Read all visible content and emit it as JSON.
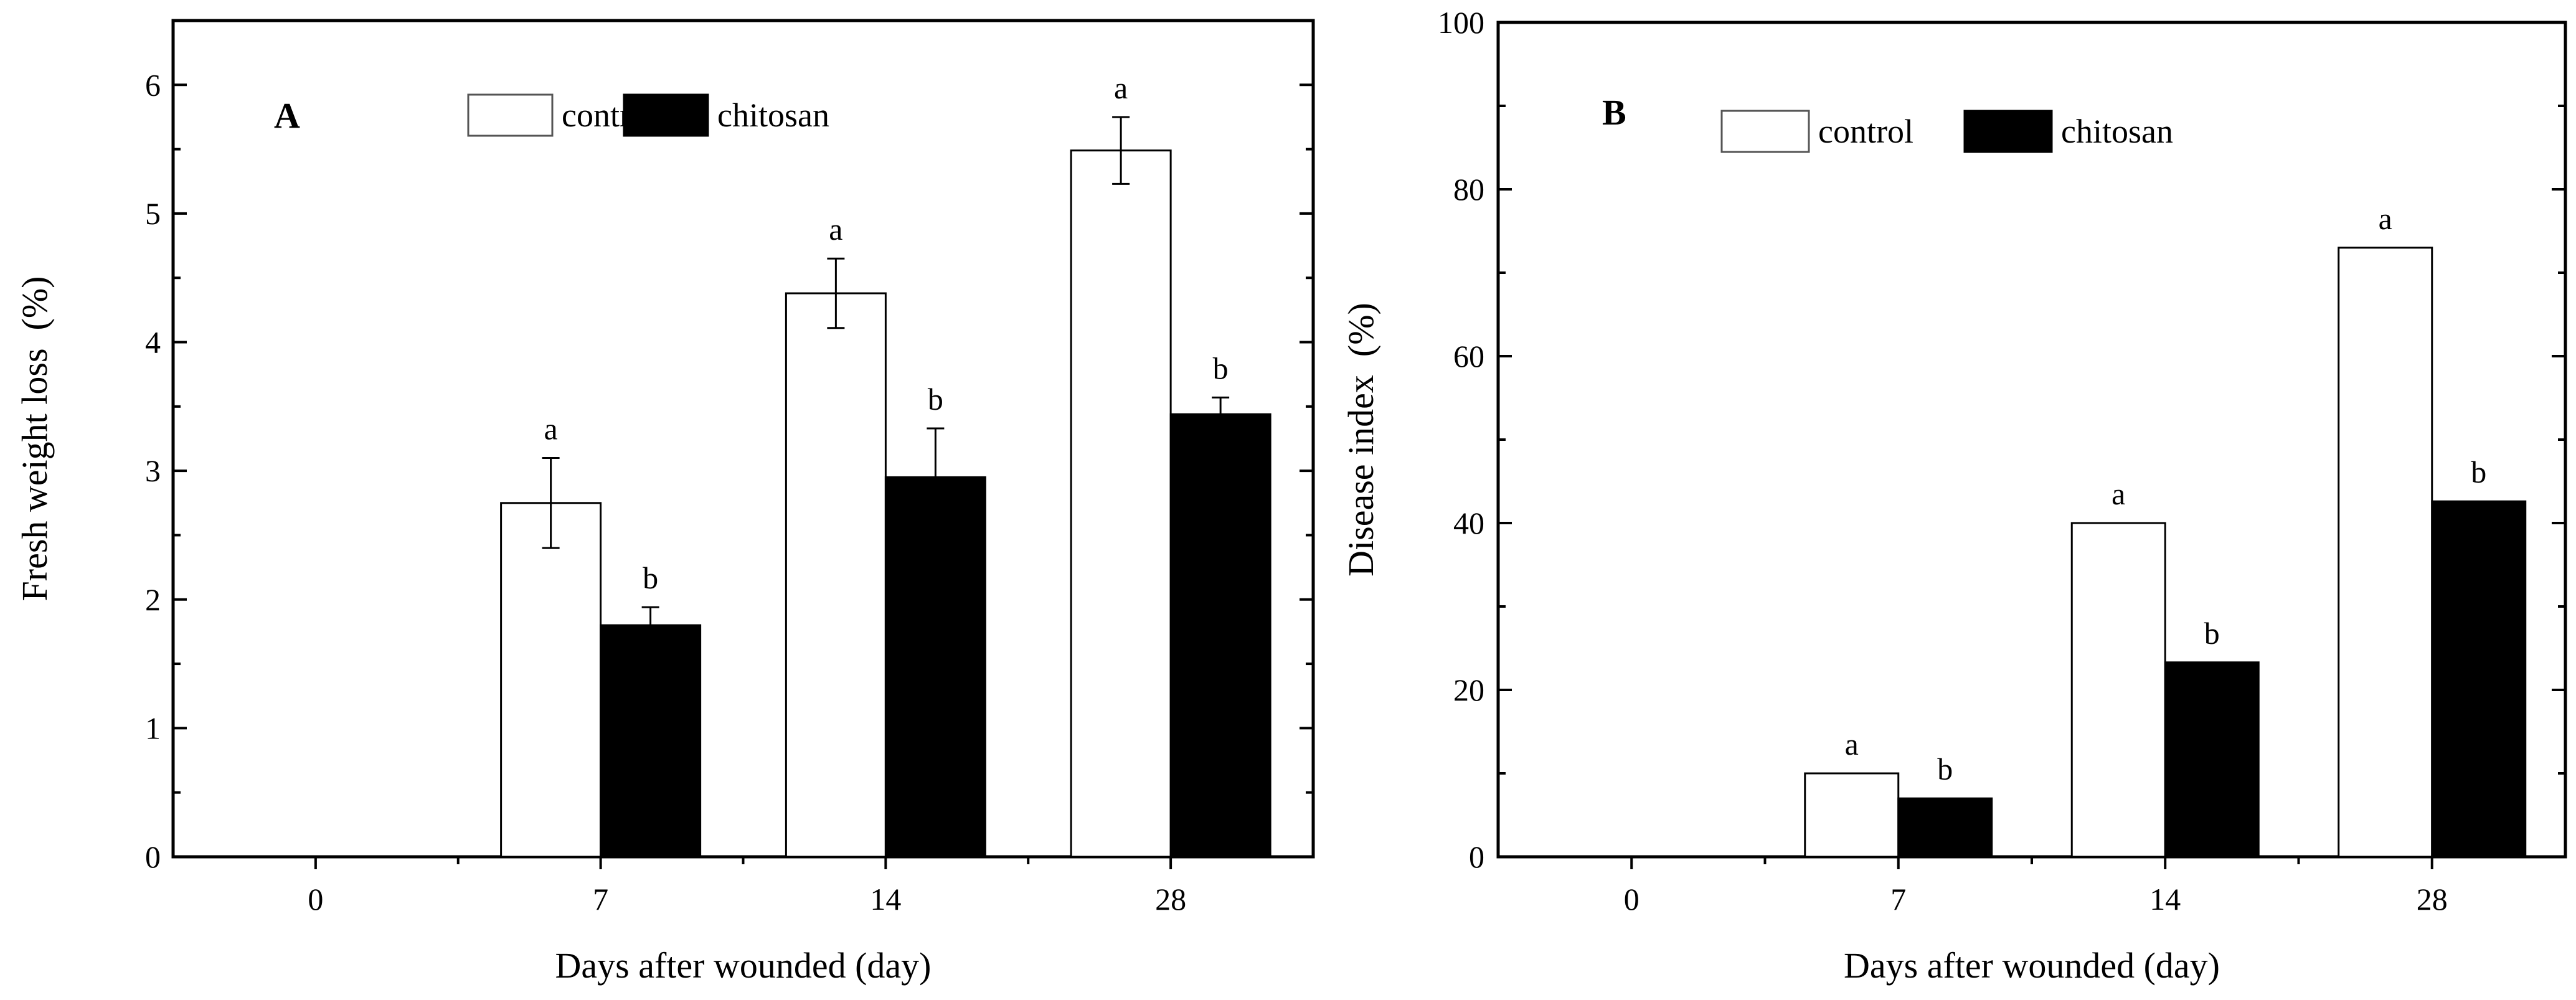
{
  "chart_data": [
    {
      "type": "bar",
      "panel_label": "A",
      "categories": [
        "0",
        "7",
        "14",
        "28"
      ],
      "series": [
        {
          "name": "control",
          "values": [
            0,
            2.75,
            4.38,
            5.49
          ],
          "errors": [
            0,
            0.35,
            0.27,
            0.26
          ],
          "letters": [
            "",
            "a",
            "a",
            "a"
          ],
          "fill": "#ffffff"
        },
        {
          "name": "chitosan",
          "values": [
            0,
            1.8,
            2.95,
            3.44
          ],
          "errors": [
            0,
            0.14,
            0.38,
            0.13
          ],
          "letters": [
            "",
            "b",
            "b",
            "b"
          ],
          "fill": "#000000"
        }
      ],
      "xlabel": "Days after wounded (day)",
      "ylabel": "Fresh weight loss  (%)",
      "ylim": [
        0,
        6.5
      ],
      "yticks": [
        0,
        1,
        2,
        3,
        4,
        5,
        6
      ],
      "legend": [
        "control",
        "chitosan"
      ],
      "legend_position": "top-center"
    },
    {
      "type": "bar",
      "panel_label": "B",
      "categories": [
        "0",
        "7",
        "14",
        "28"
      ],
      "series": [
        {
          "name": "control",
          "values": [
            0,
            10,
            40,
            73
          ],
          "letters": [
            "",
            "a",
            "a",
            "a"
          ],
          "fill": "#ffffff"
        },
        {
          "name": "chitosan",
          "values": [
            0,
            7,
            23.3,
            42.6
          ],
          "letters": [
            "",
            "b",
            "b",
            "b"
          ],
          "fill": "#000000"
        }
      ],
      "xlabel": "Days after wounded (day)",
      "ylabel": "Disease index  (%)",
      "ylim": [
        0,
        100
      ],
      "yticks": [
        0,
        20,
        40,
        60,
        80,
        100
      ],
      "legend": [
        "control",
        "chitosan"
      ],
      "legend_position": "top-center"
    }
  ]
}
